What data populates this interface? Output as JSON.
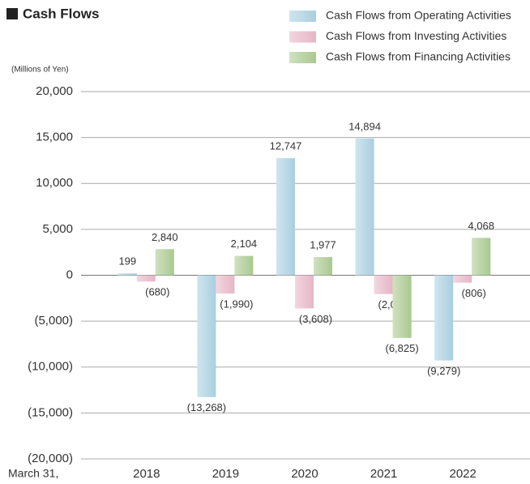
{
  "chart_data": {
    "type": "bar",
    "title": "Cash Flows",
    "y_label": "(Millions of Yen)",
    "x_label": "March 31,",
    "categories": [
      "2018",
      "2019",
      "2020",
      "2021",
      "2022"
    ],
    "series": [
      {
        "name": "Cash Flows from Operating Activities",
        "color": "#a9cfe0",
        "values": [
          199,
          -13268,
          12747,
          14894,
          -9279
        ],
        "value_labels": [
          "199",
          "(13,268)",
          "12,747",
          "14,894",
          "(9,279)"
        ]
      },
      {
        "name": "Cash Flows from Investing Activities",
        "color": "#e6b6c6",
        "values": [
          -680,
          -1990,
          -3608,
          -2048,
          -806
        ],
        "value_labels": [
          "(680)",
          "(1,990)",
          "(3,608)",
          "(2,048)",
          "(806)"
        ]
      },
      {
        "name": "Cash Flows from Financing Activities",
        "color": "#a9c98f",
        "values": [
          2840,
          2104,
          1977,
          -6825,
          4068
        ],
        "value_labels": [
          "2,840",
          "2,104",
          "1,977",
          "(6,825)",
          "4,068"
        ]
      }
    ],
    "ylim": [
      -20000,
      20000
    ],
    "yticks": [
      {
        "value": -20000,
        "label": "(20,000)"
      },
      {
        "value": -15000,
        "label": "(15,000)"
      },
      {
        "value": -10000,
        "label": "(10,000)"
      },
      {
        "value": -5000,
        "label": "(5,000)"
      },
      0,
      {
        "value": 5000,
        "label": "5,000"
      },
      {
        "value": 10000,
        "label": "10,000"
      },
      {
        "value": 15000,
        "label": "15,000"
      },
      {
        "value": 20000,
        "label": "20,000"
      }
    ],
    "grid": true
  }
}
